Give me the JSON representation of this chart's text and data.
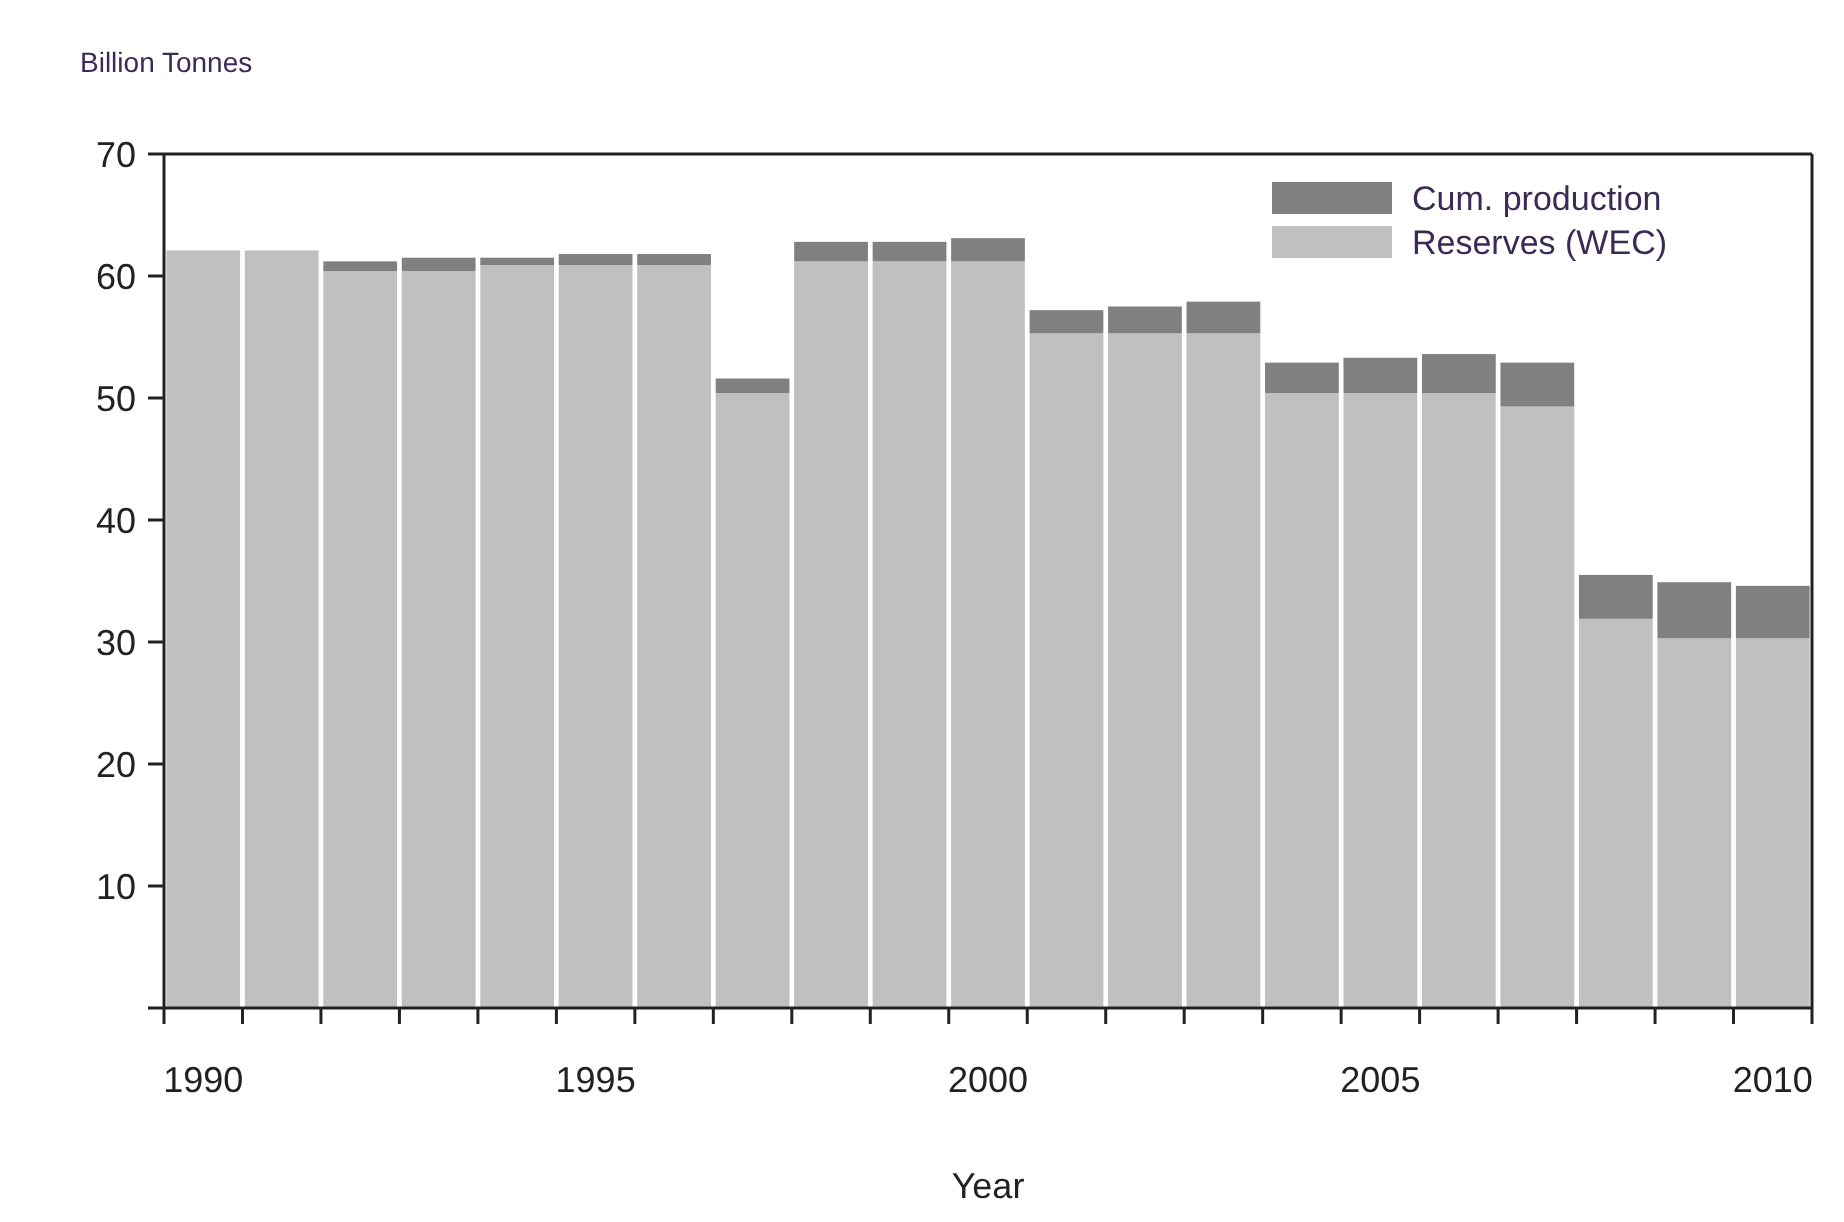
{
  "chart_data": {
    "type": "bar",
    "stacked": true,
    "xlabel": "Year",
    "ylabel": "Billion Tonnes",
    "categories": [
      "1990",
      null,
      null,
      null,
      null,
      "1995",
      null,
      null,
      null,
      null,
      "2000",
      null,
      null,
      null,
      null,
      "2005",
      null,
      null,
      null,
      null,
      "2010"
    ],
    "series": [
      {
        "name": "Reserves (WEC)",
        "color": "#c0c0c0",
        "values": [
          62.1,
          62.1,
          60.4,
          60.4,
          60.9,
          60.9,
          60.9,
          50.4,
          61.2,
          61.2,
          61.2,
          55.3,
          55.3,
          55.3,
          50.4,
          50.4,
          50.4,
          49.3,
          31.9,
          30.3,
          30.3
        ]
      },
      {
        "name": "Cum. production",
        "color": "#808080",
        "values": [
          0,
          0,
          0.8,
          1.1,
          0.6,
          0.9,
          0.9,
          1.2,
          1.6,
          1.6,
          1.9,
          1.9,
          2.2,
          2.6,
          2.5,
          2.9,
          3.2,
          3.6,
          3.6,
          4.6,
          4.3
        ]
      }
    ],
    "ylim": [
      0,
      70
    ],
    "yticks": [
      {
        "value": 0,
        "label": null
      },
      10,
      20,
      30,
      40,
      50,
      60,
      70
    ],
    "legend": "top right",
    "grid": false
  }
}
